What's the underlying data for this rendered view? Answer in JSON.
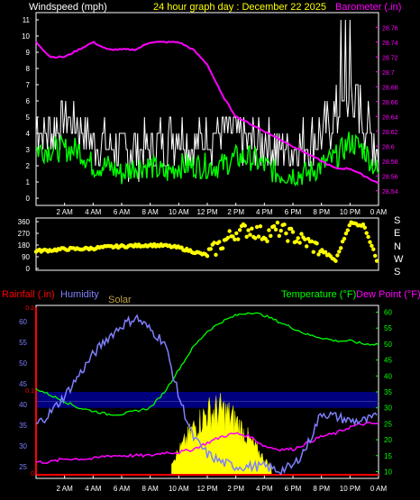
{
  "header": {
    "wind_label": "Windspeed (mph)",
    "title": "24 hour graph day : December 22 2025",
    "baro_label": "Barometer (.in)"
  },
  "colors": {
    "white": "#ffffff",
    "green": "#00ff00",
    "magenta": "#ff00ff",
    "yellow": "#ffff00",
    "red": "#ff0000",
    "blue_hum": "#7f7fff",
    "green_axis": "#00ff00",
    "navy": "#00007f",
    "solar": "#c0a040"
  },
  "x_ticks": [
    "2 AM",
    "4 AM",
    "6 AM",
    "8 AM",
    "10 AM",
    "12 PM",
    "2 PM",
    "4 PM",
    "6 PM",
    "8 PM",
    "10 PM",
    "0 AM"
  ],
  "chart_data": [
    {
      "type": "line",
      "title": "24 hour graph day : December 22 2025",
      "ylabel": "Windspeed (mph)",
      "ylabel_right": "Barometer (.in)",
      "ylim": [
        0,
        11
      ],
      "ylim_right": [
        28.53,
        28.77
      ],
      "y_ticks": [
        0,
        1,
        2,
        3,
        4,
        5,
        6,
        7,
        8,
        9,
        10,
        11
      ],
      "y_ticks_right": [
        "28.54",
        "28.56",
        "28.58",
        "28.6",
        "28.62",
        "28.64",
        "28.66",
        "28.68",
        "28.7",
        "28.72",
        "28.74",
        "28.76"
      ],
      "x_hours": [
        0,
        1,
        2,
        3,
        4,
        5,
        6,
        7,
        8,
        9,
        10,
        11,
        12,
        13,
        14,
        15,
        16,
        17,
        18,
        19,
        20,
        21,
        22,
        23,
        24
      ],
      "series": [
        {
          "key": "gust",
          "values": [
            4.5,
            4,
            5,
            4.5,
            3.5,
            3.5,
            3,
            3,
            3,
            3.5,
            4,
            3.5,
            4,
            4,
            4,
            3.5,
            3.5,
            3,
            3,
            3.5,
            4,
            5,
            6,
            5,
            3
          ]
        },
        {
          "key": "avg",
          "values": [
            3,
            3,
            3,
            3,
            2,
            2,
            1.5,
            2,
            2,
            1.5,
            2,
            2,
            2,
            2,
            2.5,
            2.5,
            2,
            1.5,
            1.5,
            1.5,
            2,
            2.5,
            3.5,
            3,
            1.5
          ]
        },
        {
          "key": "baro",
          "values": [
            28.74,
            28.72,
            28.72,
            28.73,
            28.74,
            28.73,
            28.73,
            28.73,
            28.74,
            28.74,
            28.74,
            28.73,
            28.71,
            28.67,
            28.64,
            28.63,
            28.62,
            28.61,
            28.6,
            28.59,
            28.58,
            28.57,
            28.57,
            28.56,
            28.55
          ]
        }
      ]
    },
    {
      "type": "scatter",
      "ylabel": "Wind direction",
      "ylim": [
        0,
        360
      ],
      "y_ticks": [
        0,
        90,
        180,
        270,
        360
      ],
      "compass_labels": [
        "S",
        "E",
        "N",
        "W",
        "S"
      ],
      "x_hours": [
        0,
        1,
        2,
        3,
        4,
        5,
        6,
        7,
        8,
        9,
        10,
        11,
        12,
        13,
        14,
        15,
        16,
        17,
        18,
        19,
        20,
        21,
        22,
        23,
        24
      ],
      "values": [
        135,
        140,
        150,
        150,
        155,
        165,
        170,
        175,
        180,
        175,
        160,
        130,
        100,
        190,
        280,
        300,
        260,
        300,
        250,
        200,
        140,
        60,
        350,
        330,
        30
      ]
    },
    {
      "type": "line",
      "ylabel_left_1": "Rainfall (.in)",
      "ylabel_left_2": "Humidity",
      "ylabel_left_3": "Solar",
      "ylabel_right": "Temperature (°F) Dew Point (°F)",
      "humidity_ylim": [
        23,
        63
      ],
      "humidity_ticks": [
        25,
        30,
        35,
        40,
        45,
        50,
        55,
        60
      ],
      "rain_ticks": [
        "0",
        "0.1",
        "0.2"
      ],
      "temp_ylim": [
        9,
        61
      ],
      "temp_ticks": [
        10,
        15,
        20,
        25,
        30,
        35,
        40,
        45,
        50,
        55,
        60
      ],
      "x_hours": [
        0,
        1,
        2,
        3,
        4,
        5,
        6,
        7,
        8,
        9,
        10,
        11,
        12,
        13,
        14,
        15,
        16,
        17,
        18,
        19,
        20,
        21,
        22,
        23,
        24
      ],
      "series": [
        {
          "key": "humidity",
          "values": [
            35,
            38,
            42,
            47,
            52,
            56,
            59,
            61,
            58,
            55,
            42,
            32,
            28,
            26,
            25,
            25,
            25,
            24,
            25,
            30,
            38,
            37,
            36,
            36,
            37
          ]
        },
        {
          "key": "temperature",
          "values": [
            36,
            34,
            32,
            30,
            29,
            28,
            28,
            29,
            30,
            35,
            42,
            49,
            54,
            57,
            59,
            60,
            59,
            57,
            55,
            53,
            52,
            51,
            51,
            50,
            50
          ]
        },
        {
          "key": "dewpoint",
          "values": [
            13,
            13,
            14,
            14,
            14,
            15,
            15,
            15,
            15,
            16,
            16,
            17,
            19,
            21,
            22,
            21,
            18,
            17,
            17,
            19,
            21,
            22,
            24,
            25,
            25
          ]
        },
        {
          "key": "solar",
          "values": [
            0,
            0,
            0,
            0,
            0,
            0,
            0,
            0,
            0,
            0.3,
            1.5,
            3,
            4,
            4.2,
            3.5,
            2.2,
            1,
            0,
            0,
            0,
            0,
            0,
            0,
            0,
            0
          ]
        },
        {
          "key": "rain",
          "values": [
            0,
            0,
            0,
            0,
            0,
            0,
            0,
            0,
            0,
            0,
            0,
            0,
            0,
            0,
            0,
            0,
            0,
            0,
            0,
            0,
            0,
            0,
            0,
            0,
            0
          ]
        }
      ]
    }
  ],
  "chart3_labels": {
    "rain": "Rainfall (.in)",
    "humidity": "Humidity",
    "solar": "Solar",
    "temp": "Temperature (°F)",
    "dew": "Dew Point (°F)"
  }
}
